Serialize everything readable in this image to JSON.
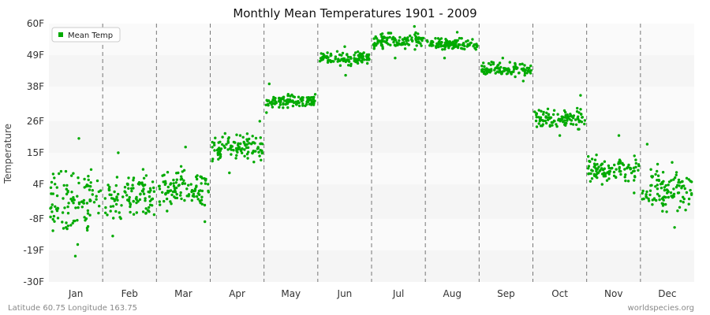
{
  "chart_data": {
    "type": "scatter",
    "title": "Monthly Mean Temperatures 1901 - 2009",
    "ylabel": "Temperature",
    "xlabel": "",
    "categories": [
      "Jan",
      "Feb",
      "Mar",
      "Apr",
      "May",
      "Jun",
      "Jul",
      "Aug",
      "Sep",
      "Oct",
      "Nov",
      "Dec"
    ],
    "y_ticks": [
      "-30F",
      "-19F",
      "-8F",
      "4F",
      "15F",
      "26F",
      "38F",
      "49F",
      "60F"
    ],
    "ylim": [
      -30,
      60
    ],
    "grid": "horizontal bands + dashed vertical month separators",
    "legend_placement": "top-left",
    "series": [
      {
        "name": "Mean Temp",
        "color": "#00aa00",
        "years": [
          1901,
          2009
        ],
        "monthly_mean": [
          -1,
          0,
          3,
          17,
          33,
          48,
          54,
          53,
          44,
          27,
          9,
          2
        ],
        "monthly_min": [
          -21,
          -14,
          -9,
          8,
          29,
          42,
          48,
          48,
          40,
          21,
          1,
          -11
        ],
        "monthly_max": [
          20,
          15,
          17,
          26,
          39,
          52,
          59,
          57,
          48,
          35,
          21,
          18
        ]
      }
    ]
  },
  "footer": {
    "left": "Latitude 60.75 Longitude 163.75",
    "right": "worldspecies.org"
  }
}
